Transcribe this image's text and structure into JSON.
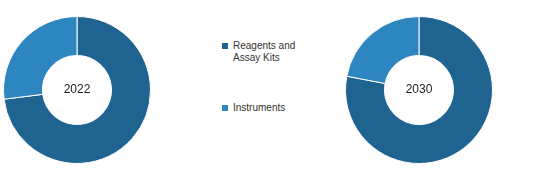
{
  "chart_data": [
    {
      "type": "doughnut",
      "title": "2022",
      "categories": [
        "Reagents and Assay Kits",
        "Instruments"
      ],
      "values": [
        73,
        27
      ],
      "colors": [
        "#1f6391",
        "#2e86c1"
      ],
      "legend": "right"
    },
    {
      "type": "doughnut",
      "title": "2030",
      "categories": [
        "Reagents and Assay Kits",
        "Instruments"
      ],
      "values": [
        78,
        22
      ],
      "colors": [
        "#1f6391",
        "#2e86c1"
      ]
    }
  ]
}
